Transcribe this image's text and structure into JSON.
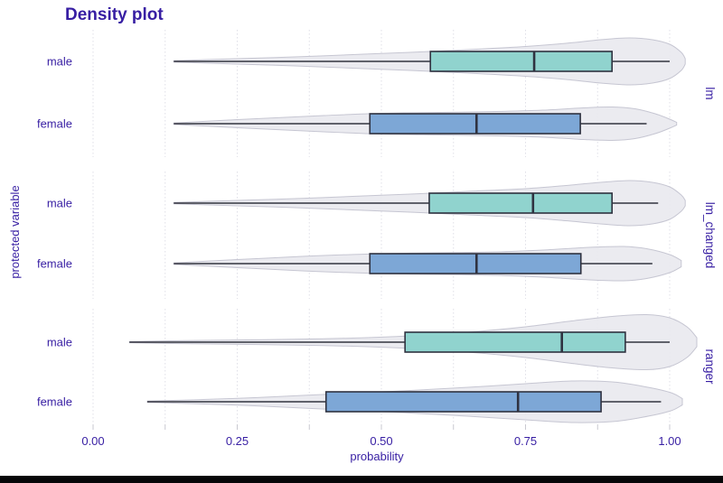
{
  "title": "Density plot",
  "x_axis": {
    "label": "probability",
    "tick_labels": [
      "0.00",
      "0.25",
      "0.50",
      "0.75",
      "1.00"
    ],
    "tick_values": [
      0,
      0.25,
      0.5,
      0.75,
      1.0
    ],
    "minor_step": 0.125,
    "range": [
      -0.03,
      1.045
    ]
  },
  "y_axis": {
    "label": "protected variable",
    "categories": [
      "male",
      "female"
    ]
  },
  "colors": {
    "text": "#371ea3",
    "male_fill": "#90d3ce",
    "female_fill": "#7da7d6",
    "box_stroke": "#2f3240",
    "line": "#33343f",
    "violin_fill": "#e9e9ef",
    "violin_stroke": "#c6c6d2",
    "gridline": "#dfdfe7",
    "tick": "#c9c9d1",
    "bottom_bar": "#060608"
  },
  "chart_data": {
    "type": "violin",
    "orientation": "horizontal",
    "subtype": "violin with boxplot overlay, faceted by model",
    "grid": "dotted vertical lines every 0.125",
    "legend_position": "none",
    "xlim": [
      -0.03,
      1.045
    ],
    "facets": [
      {
        "label": "lm",
        "rows": [
          {
            "category": "male",
            "fill": "#90d3ce",
            "box": {
              "min": 0.14,
              "q1": 0.585,
              "median": 0.765,
              "q3": 0.9,
              "max": 1.0
            },
            "density": [
              [
                0.14,
                0.8
              ],
              [
                0.25,
                3
              ],
              [
                0.35,
                5
              ],
              [
                0.45,
                7.5
              ],
              [
                0.55,
                10
              ],
              [
                0.65,
                13
              ],
              [
                0.75,
                16.5
              ],
              [
                0.82,
                20
              ],
              [
                0.88,
                24
              ],
              [
                0.93,
                26
              ],
              [
                0.97,
                24
              ],
              [
                1.0,
                19
              ],
              [
                1.02,
                10
              ],
              [
                1.027,
                3
              ]
            ]
          },
          {
            "category": "female",
            "fill": "#7da7d6",
            "box": {
              "min": 0.14,
              "q1": 0.48,
              "median": 0.665,
              "q3": 0.845,
              "max": 0.96
            },
            "density": [
              [
                0.14,
                0.8
              ],
              [
                0.22,
                3.5
              ],
              [
                0.3,
                6
              ],
              [
                0.4,
                9
              ],
              [
                0.5,
                11.5
              ],
              [
                0.6,
                12.5
              ],
              [
                0.7,
                13.5
              ],
              [
                0.78,
                15
              ],
              [
                0.85,
                17.5
              ],
              [
                0.9,
                18.5
              ],
              [
                0.94,
                16.5
              ],
              [
                0.975,
                11
              ],
              [
                1.0,
                5
              ],
              [
                1.012,
                1.5
              ]
            ]
          }
        ]
      },
      {
        "label": "lm_changed",
        "rows": [
          {
            "category": "male",
            "fill": "#90d3ce",
            "box": {
              "min": 0.14,
              "q1": 0.583,
              "median": 0.763,
              "q3": 0.9,
              "max": 0.98
            },
            "density": [
              [
                0.14,
                0.8
              ],
              [
                0.25,
                3
              ],
              [
                0.35,
                5
              ],
              [
                0.45,
                7.5
              ],
              [
                0.55,
                10
              ],
              [
                0.65,
                13
              ],
              [
                0.75,
                16
              ],
              [
                0.82,
                19.5
              ],
              [
                0.88,
                23
              ],
              [
                0.93,
                25
              ],
              [
                0.97,
                23
              ],
              [
                1.0,
                18
              ],
              [
                1.02,
                9
              ],
              [
                1.027,
                3
              ]
            ]
          },
          {
            "category": "female",
            "fill": "#7da7d6",
            "box": {
              "min": 0.14,
              "q1": 0.48,
              "median": 0.665,
              "q3": 0.846,
              "max": 0.97
            },
            "density": [
              [
                0.14,
                0.8
              ],
              [
                0.22,
                3.5
              ],
              [
                0.3,
                6
              ],
              [
                0.4,
                9
              ],
              [
                0.5,
                11
              ],
              [
                0.6,
                12
              ],
              [
                0.7,
                13
              ],
              [
                0.78,
                15
              ],
              [
                0.86,
                18
              ],
              [
                0.92,
                19
              ],
              [
                0.96,
                16.5
              ],
              [
                1.0,
                10
              ],
              [
                1.02,
                3.5
              ]
            ]
          }
        ]
      },
      {
        "label": "ranger",
        "rows": [
          {
            "category": "male",
            "fill": "#90d3ce",
            "box": {
              "min": 0.063,
              "q1": 0.541,
              "median": 0.813,
              "q3": 0.923,
              "max": 1.0
            },
            "density": [
              [
                0.063,
                0.6
              ],
              [
                0.15,
                1.6
              ],
              [
                0.25,
                2.4
              ],
              [
                0.35,
                3.2
              ],
              [
                0.45,
                4.5
              ],
              [
                0.55,
                7
              ],
              [
                0.65,
                11
              ],
              [
                0.75,
                17
              ],
              [
                0.83,
                23.5
              ],
              [
                0.9,
                28.5
              ],
              [
                0.96,
                30.5
              ],
              [
                1.0,
                27
              ],
              [
                1.03,
                17
              ],
              [
                1.047,
                5
              ]
            ]
          },
          {
            "category": "female",
            "fill": "#7da7d6",
            "box": {
              "min": 0.094,
              "q1": 0.404,
              "median": 0.737,
              "q3": 0.881,
              "max": 0.985
            },
            "density": [
              [
                0.094,
                0.7
              ],
              [
                0.18,
                2.2
              ],
              [
                0.28,
                4.5
              ],
              [
                0.38,
                7.5
              ],
              [
                0.45,
                9.5
              ],
              [
                0.55,
                12.5
              ],
              [
                0.65,
                16
              ],
              [
                0.75,
                20
              ],
              [
                0.83,
                23
              ],
              [
                0.9,
                22
              ],
              [
                0.95,
                17.5
              ],
              [
                1.0,
                10.5
              ],
              [
                1.022,
                3.5
              ]
            ]
          }
        ]
      }
    ]
  }
}
